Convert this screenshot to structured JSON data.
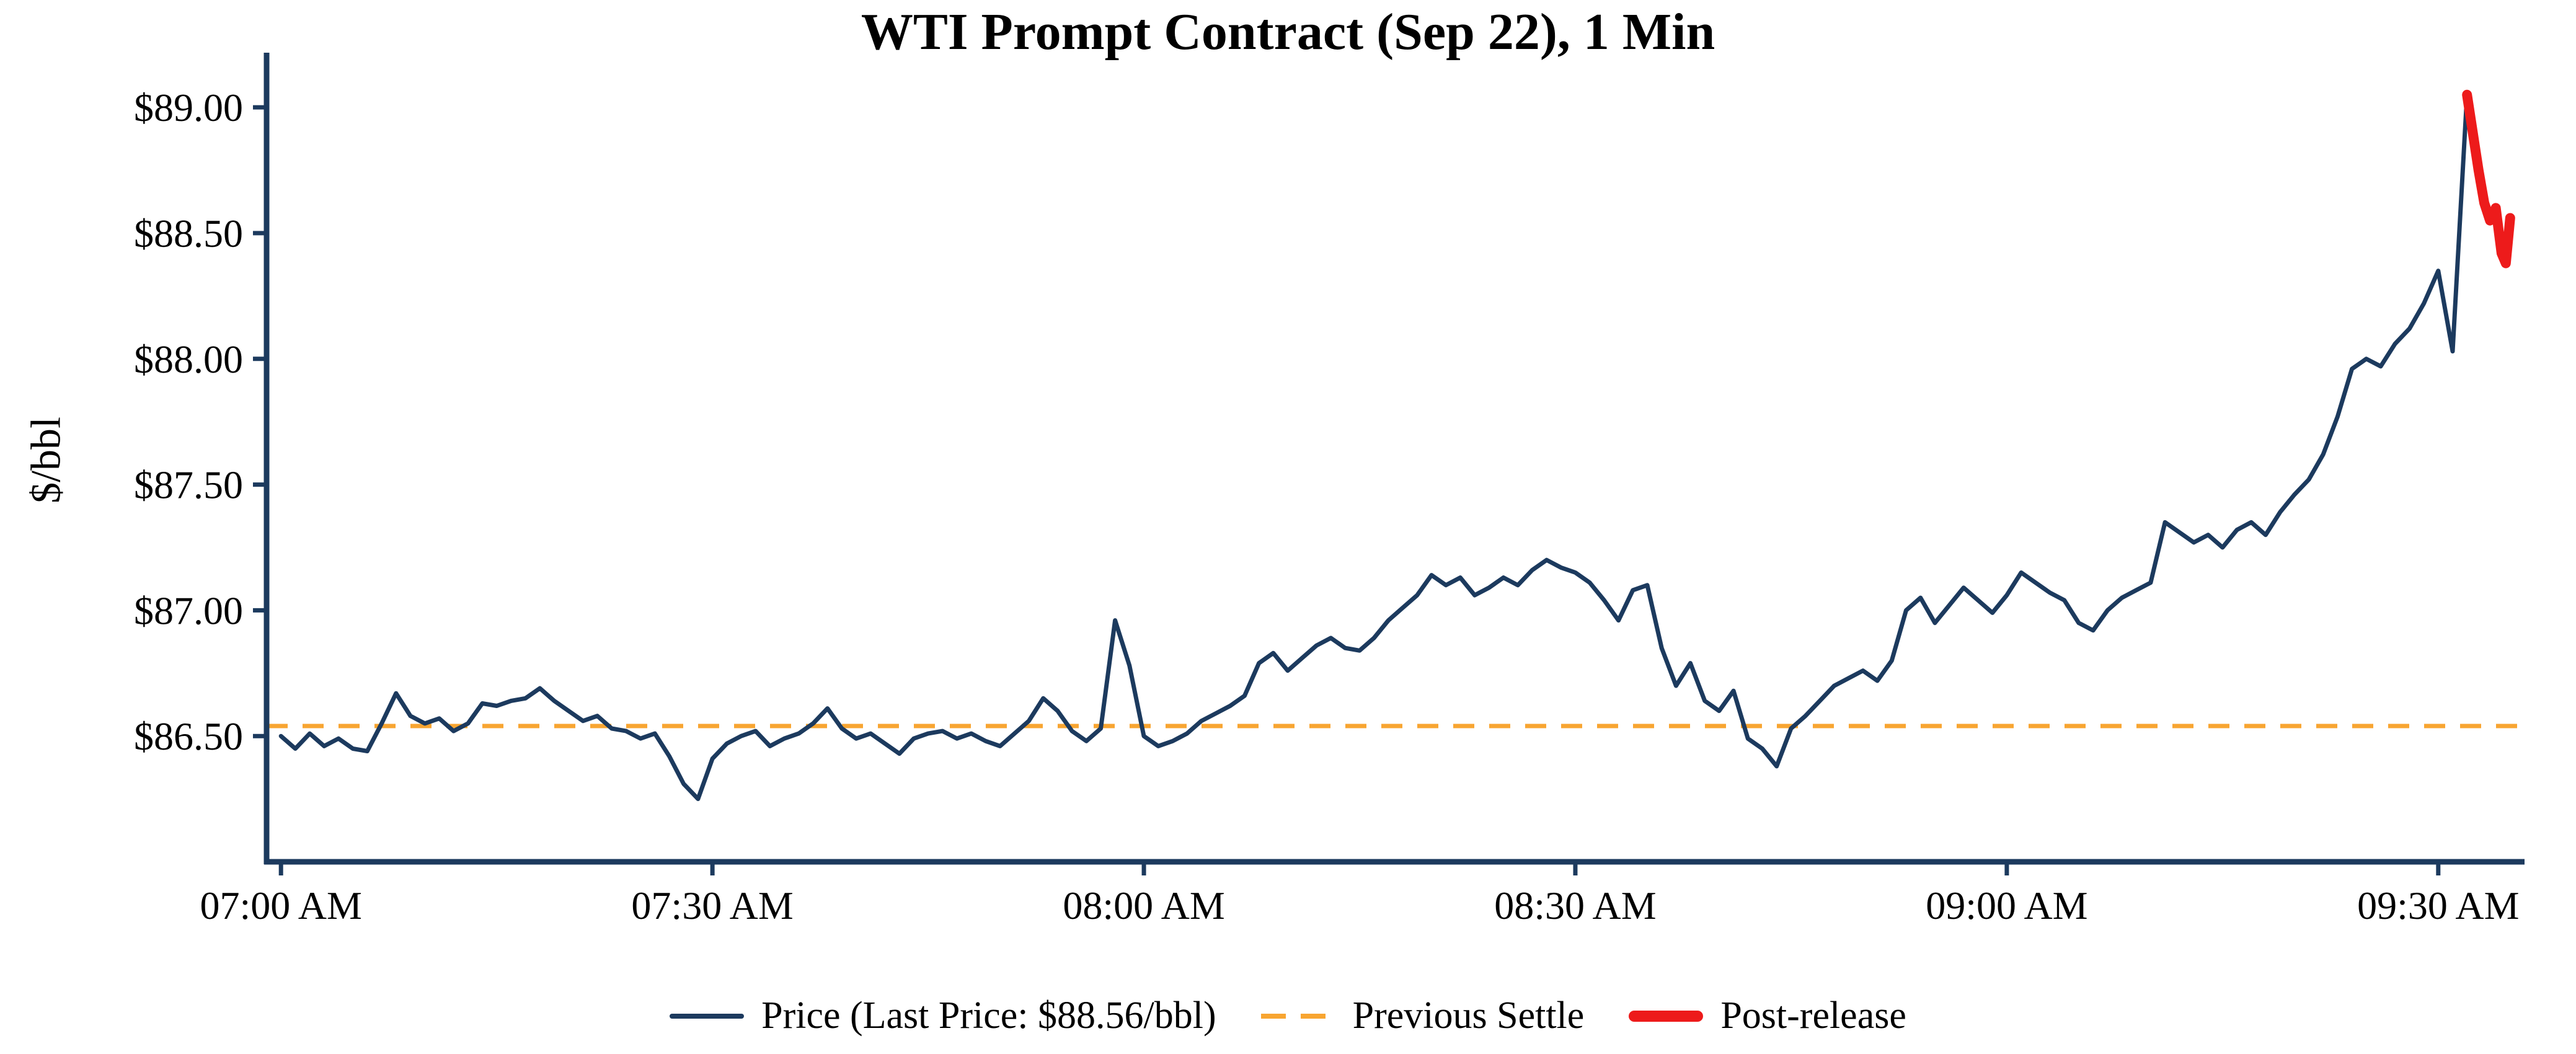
{
  "chart_data": {
    "type": "line",
    "title": "WTI Prompt Contract (Sep 22), 1 Min",
    "ylabel": "$/bbl",
    "x_range": [
      -1,
      156
    ],
    "y_range": [
      86.0,
      89.2
    ],
    "x_ticks": [
      {
        "pos": 0,
        "label": "07:00 AM"
      },
      {
        "pos": 30,
        "label": "07:30 AM"
      },
      {
        "pos": 60,
        "label": "08:00 AM"
      },
      {
        "pos": 90,
        "label": "08:30 AM"
      },
      {
        "pos": 120,
        "label": "09:00 AM"
      },
      {
        "pos": 150,
        "label": "09:30 AM"
      }
    ],
    "y_ticks": [
      {
        "value": 86.5,
        "label": "$86.50"
      },
      {
        "value": 87.0,
        "label": "$87.00"
      },
      {
        "value": 87.5,
        "label": "$87.50"
      },
      {
        "value": 88.0,
        "label": "$88.00"
      },
      {
        "value": 88.5,
        "label": "$88.50"
      },
      {
        "value": 89.0,
        "label": "$89.00"
      }
    ],
    "previous_settle": 86.54,
    "last_price_text": "$88.56/bbl",
    "colors": {
      "price": "#1c3a5e",
      "post_release": "#ed1b1b",
      "settle": "#f8a531",
      "axis": "#1c3a5e"
    },
    "legend": {
      "price": "Price (Last Price: $88.56/bbl)",
      "settle": "Previous Settle",
      "post": "Post-release"
    },
    "series": [
      {
        "key": "price",
        "name": "Price",
        "color": "#1c3a5e",
        "width": 7,
        "points": [
          [
            0,
            86.5
          ],
          [
            1,
            86.45
          ],
          [
            2,
            86.51
          ],
          [
            3,
            86.46
          ],
          [
            4,
            86.49
          ],
          [
            5,
            86.45
          ],
          [
            6,
            86.44
          ],
          [
            7,
            86.55
          ],
          [
            8,
            86.67
          ],
          [
            9,
            86.58
          ],
          [
            10,
            86.55
          ],
          [
            11,
            86.57
          ],
          [
            12,
            86.52
          ],
          [
            13,
            86.55
          ],
          [
            14,
            86.63
          ],
          [
            15,
            86.62
          ],
          [
            16,
            86.64
          ],
          [
            17,
            86.65
          ],
          [
            18,
            86.69
          ],
          [
            19,
            86.64
          ],
          [
            20,
            86.6
          ],
          [
            21,
            86.56
          ],
          [
            22,
            86.58
          ],
          [
            23,
            86.53
          ],
          [
            24,
            86.52
          ],
          [
            25,
            86.49
          ],
          [
            26,
            86.51
          ],
          [
            27,
            86.42
          ],
          [
            28,
            86.31
          ],
          [
            29,
            86.25
          ],
          [
            30,
            86.41
          ],
          [
            31,
            86.47
          ],
          [
            32,
            86.5
          ],
          [
            33,
            86.52
          ],
          [
            34,
            86.46
          ],
          [
            35,
            86.49
          ],
          [
            36,
            86.51
          ],
          [
            37,
            86.55
          ],
          [
            38,
            86.61
          ],
          [
            39,
            86.53
          ],
          [
            40,
            86.49
          ],
          [
            41,
            86.51
          ],
          [
            42,
            86.47
          ],
          [
            43,
            86.43
          ],
          [
            44,
            86.49
          ],
          [
            45,
            86.51
          ],
          [
            46,
            86.52
          ],
          [
            47,
            86.49
          ],
          [
            48,
            86.51
          ],
          [
            49,
            86.48
          ],
          [
            50,
            86.46
          ],
          [
            51,
            86.51
          ],
          [
            52,
            86.56
          ],
          [
            53,
            86.65
          ],
          [
            54,
            86.6
          ],
          [
            55,
            86.52
          ],
          [
            56,
            86.48
          ],
          [
            57,
            86.53
          ],
          [
            58,
            86.96
          ],
          [
            59,
            86.78
          ],
          [
            60,
            86.5
          ],
          [
            61,
            86.46
          ],
          [
            62,
            86.48
          ],
          [
            63,
            86.51
          ],
          [
            64,
            86.56
          ],
          [
            65,
            86.59
          ],
          [
            66,
            86.62
          ],
          [
            67,
            86.66
          ],
          [
            68,
            86.79
          ],
          [
            69,
            86.83
          ],
          [
            70,
            86.76
          ],
          [
            71,
            86.81
          ],
          [
            72,
            86.86
          ],
          [
            73,
            86.89
          ],
          [
            74,
            86.85
          ],
          [
            75,
            86.84
          ],
          [
            76,
            86.89
          ],
          [
            77,
            86.96
          ],
          [
            78,
            87.01
          ],
          [
            79,
            87.06
          ],
          [
            80,
            87.14
          ],
          [
            81,
            87.1
          ],
          [
            82,
            87.13
          ],
          [
            83,
            87.06
          ],
          [
            84,
            87.09
          ],
          [
            85,
            87.13
          ],
          [
            86,
            87.1
          ],
          [
            87,
            87.16
          ],
          [
            88,
            87.2
          ],
          [
            89,
            87.17
          ],
          [
            90,
            87.15
          ],
          [
            91,
            87.11
          ],
          [
            92,
            87.04
          ],
          [
            93,
            86.96
          ],
          [
            94,
            87.08
          ],
          [
            95,
            87.1
          ],
          [
            96,
            86.85
          ],
          [
            97,
            86.7
          ],
          [
            98,
            86.79
          ],
          [
            99,
            86.64
          ],
          [
            100,
            86.6
          ],
          [
            101,
            86.68
          ],
          [
            102,
            86.49
          ],
          [
            103,
            86.45
          ],
          [
            104,
            86.38
          ],
          [
            105,
            86.53
          ],
          [
            106,
            86.58
          ],
          [
            107,
            86.64
          ],
          [
            108,
            86.7
          ],
          [
            109,
            86.73
          ],
          [
            110,
            86.76
          ],
          [
            111,
            86.72
          ],
          [
            112,
            86.8
          ],
          [
            113,
            87.0
          ],
          [
            114,
            87.05
          ],
          [
            115,
            86.95
          ],
          [
            116,
            87.02
          ],
          [
            117,
            87.09
          ],
          [
            118,
            87.04
          ],
          [
            119,
            86.99
          ],
          [
            120,
            87.06
          ],
          [
            121,
            87.15
          ],
          [
            122,
            87.11
          ],
          [
            123,
            87.07
          ],
          [
            124,
            87.04
          ],
          [
            125,
            86.95
          ],
          [
            126,
            86.92
          ],
          [
            127,
            87.0
          ],
          [
            128,
            87.05
          ],
          [
            129,
            87.08
          ],
          [
            130,
            87.11
          ],
          [
            131,
            87.35
          ],
          [
            132,
            87.31
          ],
          [
            133,
            87.27
          ],
          [
            134,
            87.3
          ],
          [
            135,
            87.25
          ],
          [
            136,
            87.32
          ],
          [
            137,
            87.35
          ],
          [
            138,
            87.3
          ],
          [
            139,
            87.39
          ],
          [
            140,
            87.46
          ],
          [
            141,
            87.52
          ],
          [
            142,
            87.62
          ],
          [
            143,
            87.77
          ],
          [
            144,
            87.96
          ],
          [
            145,
            88.0
          ],
          [
            146,
            87.97
          ],
          [
            147,
            88.06
          ],
          [
            148,
            88.12
          ],
          [
            149,
            88.22
          ],
          [
            150,
            88.35
          ],
          [
            151,
            88.03
          ],
          [
            152,
            89.05
          ]
        ]
      },
      {
        "key": "post-release",
        "name": "Post-release",
        "color": "#ed1b1b",
        "width": 16,
        "points": [
          [
            152,
            89.05
          ],
          [
            152.4,
            88.9
          ],
          [
            152.8,
            88.75
          ],
          [
            153.2,
            88.62
          ],
          [
            153.6,
            88.55
          ],
          [
            154,
            88.6
          ],
          [
            154.4,
            88.42
          ],
          [
            154.7,
            88.38
          ],
          [
            155,
            88.56
          ]
        ]
      }
    ]
  }
}
